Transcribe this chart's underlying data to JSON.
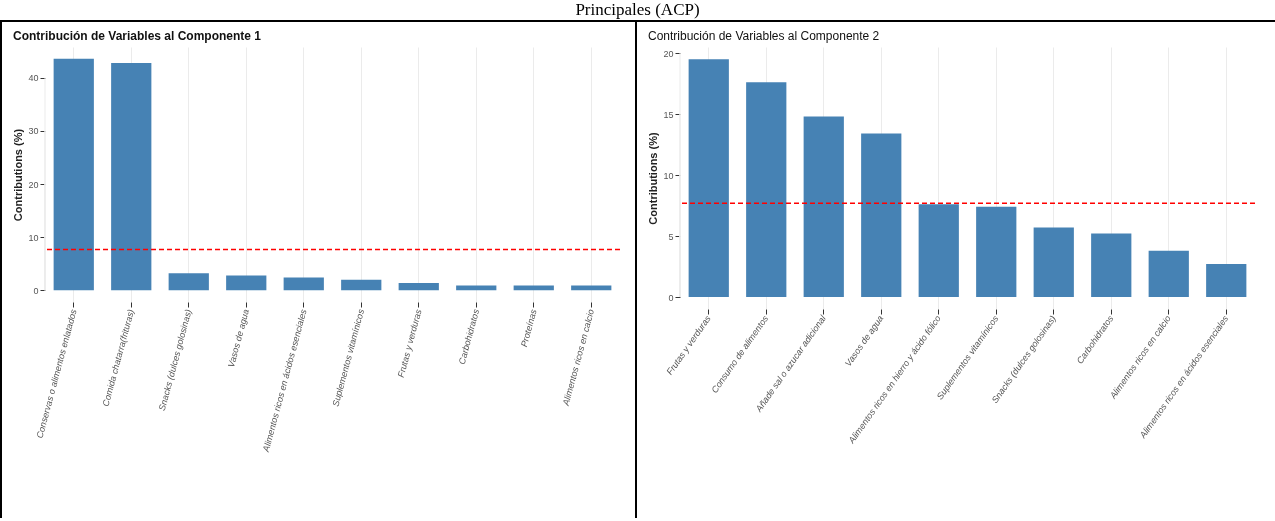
{
  "chart_data": [
    {
      "type": "bar",
      "title": "Contribución de Variables al Componente 1",
      "ylabel": "Contributions (%)",
      "annotations": [
        "Principales (ACP)"
      ],
      "categories": [
        "Conservas o alimentos enlatados",
        "Comida chatarra(frituras)",
        "Snacks (dulces golosinas)",
        "Vasos de agua",
        "Alimentos ricos en ácidos esenciales",
        "Suplementos vitamínicos",
        "Frutas y verduras",
        "Carbohidratos",
        "Proteínas",
        "Alimentos ricos en calcio"
      ],
      "values": [
        43.6,
        42.8,
        3.2,
        2.8,
        2.4,
        2.0,
        1.4,
        0.9,
        0.9,
        0.9
      ],
      "color": "#4682b4",
      "ylim": [
        -2.2,
        45.8
      ],
      "yticks": [
        0,
        10,
        20,
        30,
        40
      ],
      "grid": true,
      "ref_lines": [
        {
          "axis": "y",
          "value": 7.7,
          "color": "#ff0000",
          "line_style": "dashed"
        }
      ]
    },
    {
      "type": "bar",
      "title": "Contribución de Variables al Componente 2",
      "ylabel": "Contributions (%)",
      "categories": [
        "Frutas y verduras",
        "Consumo de alimentos",
        "Añade sal o azucar adicional",
        "Vasos de agua",
        "Alimentos ricos en hierro y  ácido fólico",
        "Suplementos vitamínicos",
        "Snacks (dulces golosinas)",
        "Carbohidratos",
        "Alimentos ricos en calcio",
        "Alimentos ricos en ácidos esenciales"
      ],
      "values": [
        19.5,
        17.6,
        14.8,
        13.4,
        7.6,
        7.4,
        5.7,
        5.2,
        3.8,
        2.7
      ],
      "color": "#4682b4",
      "ylim": [
        -0.98,
        20.5
      ],
      "yticks": [
        0,
        5,
        10,
        15,
        20
      ],
      "grid": true,
      "ref_lines": [
        {
          "axis": "y",
          "value": 7.7,
          "color": "#ff0000",
          "line_style": "dashed"
        }
      ]
    }
  ]
}
